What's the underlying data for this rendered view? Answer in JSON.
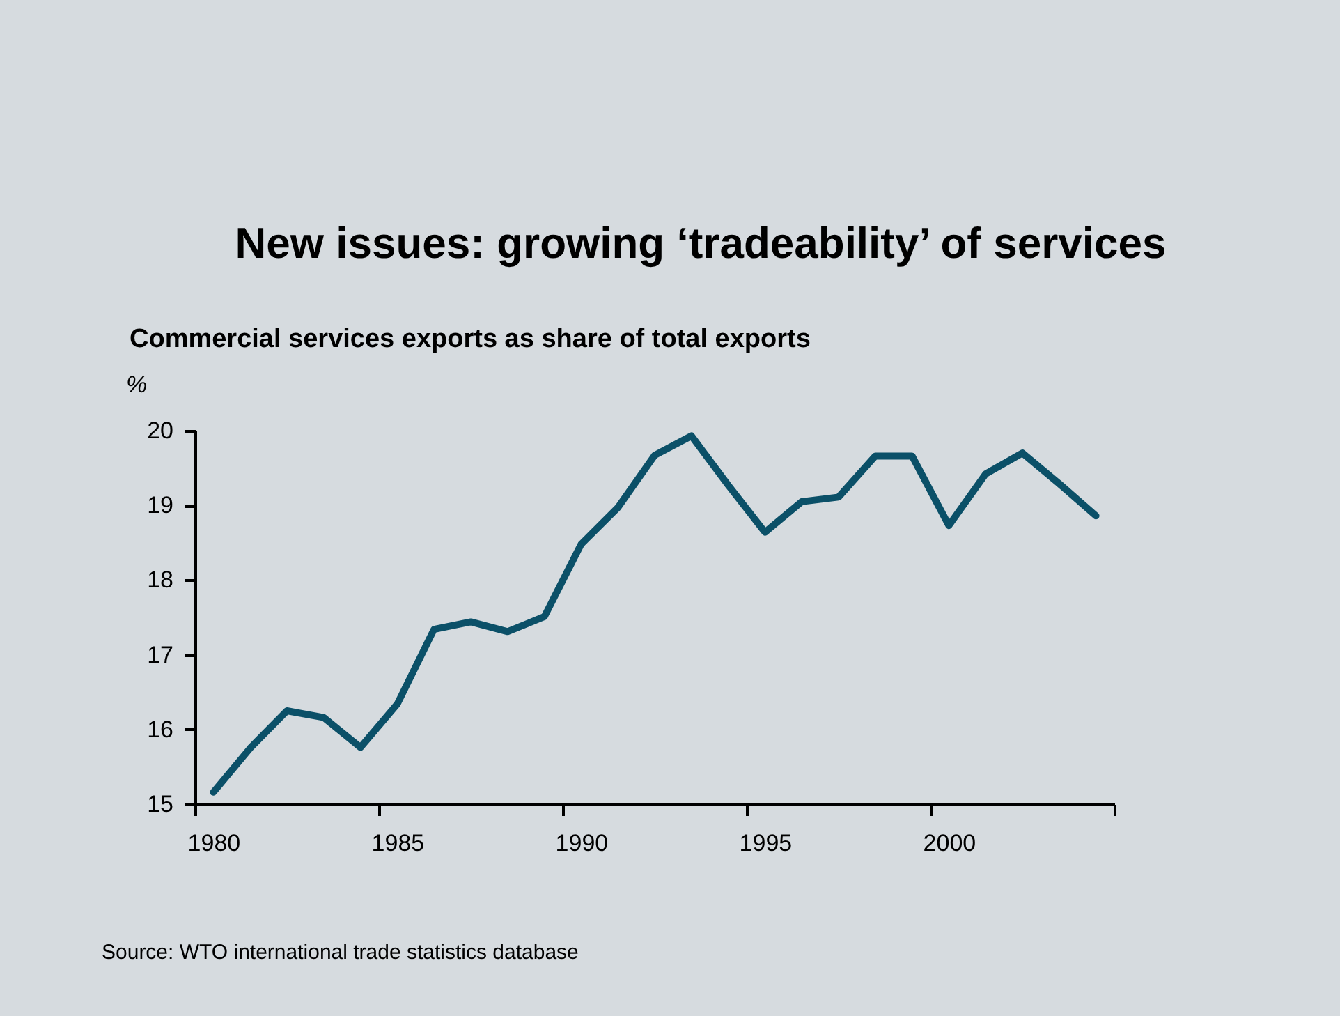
{
  "chart_data": {
    "type": "line",
    "title": "New issues: growing ‘tradeability’ of services",
    "subtitle": "Commercial services exports as share of total exports",
    "ylabel": "%",
    "x": [
      1980,
      1981,
      1982,
      1983,
      1984,
      1985,
      1986,
      1987,
      1988,
      1989,
      1990,
      1991,
      1992,
      1993,
      1994,
      1995,
      1996,
      1997,
      1998,
      1999,
      2000,
      2001,
      2002,
      2003,
      2004
    ],
    "series": [
      {
        "color": "#0b5068",
        "values": [
          15.16,
          15.75,
          16.25,
          16.16,
          15.76,
          16.34,
          17.34,
          17.44,
          17.31,
          17.51,
          18.48,
          18.97,
          19.67,
          19.93,
          19.27,
          18.64,
          19.05,
          19.11,
          19.66,
          19.66,
          18.73,
          19.42,
          19.7,
          19.29,
          18.86
        ]
      }
    ],
    "xlim": [
      1979.5,
      2004.5
    ],
    "xticks": [
      {
        "value": 1979.5,
        "label": null
      },
      1980,
      {
        "value": 1984.5,
        "label": null
      },
      1985,
      {
        "value": 1989.5,
        "label": null
      },
      1990,
      {
        "value": 1994.5,
        "label": null
      },
      1995,
      {
        "value": 1999.5,
        "label": null
      },
      2000,
      {
        "value": 2004.5,
        "label": null
      }
    ],
    "ylim": [
      15,
      20
    ],
    "yticks": [
      15,
      16,
      17,
      18,
      19,
      20
    ],
    "grid": false,
    "marker": "none",
    "line_style": "solid",
    "annotations": [
      "Source: WTO international trade statistics database"
    ]
  }
}
